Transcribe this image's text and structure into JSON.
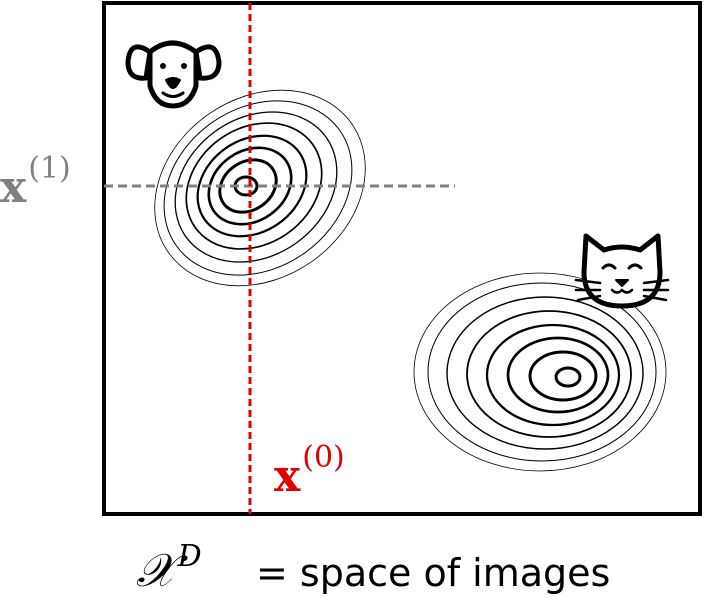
{
  "labels": {
    "x1_base": "x",
    "x1_sup": "(1)",
    "x0_base": "x",
    "x0_sup": "(0)",
    "space_symbol": "𝒳",
    "space_sup": "D",
    "caption": "= space of images"
  },
  "icons": {
    "dog": "dog-face-icon",
    "cat": "cat-face-icon"
  },
  "colors": {
    "frame": "#000000",
    "x0_line": "#e00000",
    "x1_line": "#808080",
    "contour": "#000000"
  }
}
